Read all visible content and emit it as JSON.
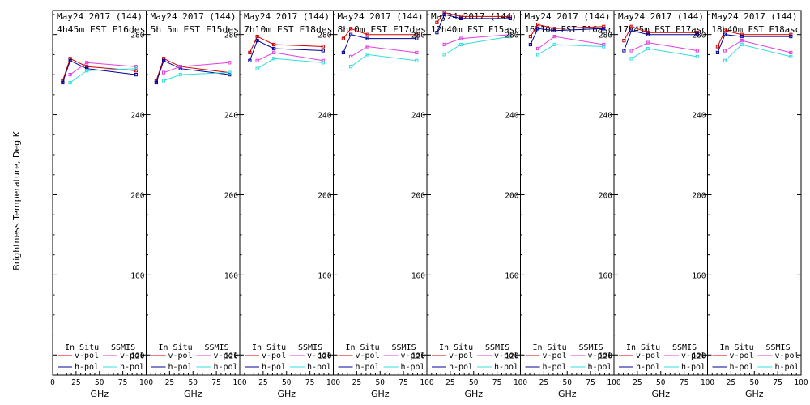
{
  "figure": {
    "ylabel": "Brightness Temperature, Deg K",
    "xlabel": "GHz",
    "legend": {
      "insitu_header": "In Situ",
      "ssmis_header": "SSMIS",
      "vpol_label": "v-pol",
      "hpol_label": "h-pol"
    },
    "colors": {
      "insitu_v": "#cc0000",
      "insitu_h": "#000099",
      "ssmis_v": "#e040e0",
      "ssmis_h": "#33dddd"
    }
  },
  "chart_data": [
    {
      "type": "line",
      "title_line1": "May24 2017 (144)",
      "title_line2": "4h45m  EST  F16des",
      "x": [
        10.7,
        18.7,
        36.5,
        89
      ],
      "xlim": [
        0,
        100
      ],
      "ylim": [
        110,
        292
      ],
      "xticks": [
        "0",
        "25",
        "50",
        "75",
        "100"
      ],
      "yticks": [],
      "series": [
        {
          "name": "In Situ v-pol",
          "values": [
            257,
            268,
            264,
            262
          ]
        },
        {
          "name": "In Situ h-pol",
          "values": [
            256,
            267,
            263,
            260
          ]
        },
        {
          "name": "SSMIS v-pol",
          "values": [
            null,
            260,
            266,
            264
          ]
        },
        {
          "name": "SSMIS h-pol",
          "values": [
            null,
            256,
            262,
            263
          ]
        }
      ]
    },
    {
      "type": "line",
      "title_line1": "May24 2017 (144)",
      "title_line2": "5h 5m  EST  F15des",
      "x": [
        10.7,
        18.7,
        36.5,
        89
      ],
      "xlim": [
        0,
        100
      ],
      "ylim": [
        110,
        292
      ],
      "xticks": [
        "0",
        "25",
        "50",
        "75",
        "100"
      ],
      "yticks": [
        "280",
        "240",
        "200",
        "160",
        "120"
      ],
      "series": [
        {
          "name": "In Situ v-pol",
          "values": [
            257,
            268,
            264,
            261
          ]
        },
        {
          "name": "In Situ h-pol",
          "values": [
            256,
            267,
            263,
            260
          ]
        },
        {
          "name": "SSMIS v-pol",
          "values": [
            null,
            261,
            264,
            266
          ]
        },
        {
          "name": "SSMIS h-pol",
          "values": [
            null,
            257,
            260,
            261
          ]
        }
      ]
    },
    {
      "type": "line",
      "title_line1": "May24 2017 (144)",
      "title_line2": "7h10m  EST  F18des",
      "x": [
        10.7,
        18.7,
        36.5,
        89
      ],
      "xlim": [
        0,
        100
      ],
      "ylim": [
        110,
        292
      ],
      "xticks": [
        "0",
        "25",
        "50",
        "75",
        "100"
      ],
      "yticks": [
        "280",
        "240",
        "200",
        "160",
        "120"
      ],
      "series": [
        {
          "name": "In Situ v-pol",
          "values": [
            271,
            279,
            275,
            274
          ]
        },
        {
          "name": "In Situ h-pol",
          "values": [
            267,
            277,
            273,
            272
          ]
        },
        {
          "name": "SSMIS v-pol",
          "values": [
            null,
            267,
            271,
            267
          ]
        },
        {
          "name": "SSMIS h-pol",
          "values": [
            null,
            263,
            268,
            266
          ]
        }
      ]
    },
    {
      "type": "line",
      "title_line1": "May24 2017 (144)",
      "title_line2": "8h 0m  EST  F17des",
      "x": [
        10.7,
        18.7,
        36.5,
        89
      ],
      "xlim": [
        0,
        100
      ],
      "ylim": [
        110,
        292
      ],
      "xticks": [
        "0",
        "25",
        "50",
        "75",
        "100"
      ],
      "yticks": [
        "280",
        "240",
        "200",
        "160",
        "120"
      ],
      "series": [
        {
          "name": "In Situ v-pol",
          "values": [
            278,
            283,
            280,
            280
          ]
        },
        {
          "name": "In Situ h-pol",
          "values": [
            271,
            280,
            278,
            278
          ]
        },
        {
          "name": "SSMIS v-pol",
          "values": [
            null,
            269,
            274,
            271
          ]
        },
        {
          "name": "SSMIS h-pol",
          "values": [
            null,
            264,
            270,
            267
          ]
        }
      ]
    },
    {
      "type": "line",
      "title_line1": "May24 2017 (144)",
      "title_line2": "12h40m  EST  F15asc",
      "x": [
        10.7,
        18.7,
        36.5,
        89
      ],
      "xlim": [
        0,
        100
      ],
      "ylim": [
        110,
        292
      ],
      "xticks": [
        "0",
        "25",
        "50",
        "75",
        "100"
      ],
      "yticks": [
        "280",
        "240",
        "200",
        "160",
        "120"
      ],
      "series": [
        {
          "name": "In Situ v-pol",
          "values": [
            286,
            291,
            289,
            289
          ]
        },
        {
          "name": "In Situ h-pol",
          "values": [
            281,
            290,
            288,
            288
          ]
        },
        {
          "name": "SSMIS v-pol",
          "values": [
            null,
            275,
            278,
            280
          ]
        },
        {
          "name": "SSMIS h-pol",
          "values": [
            null,
            270,
            275,
            279
          ]
        }
      ]
    },
    {
      "type": "line",
      "title_line1": "May24 2017 (144)",
      "title_line2": "16h10m  EST  F16asc",
      "x": [
        10.7,
        18.7,
        36.5,
        89
      ],
      "xlim": [
        0,
        100
      ],
      "ylim": [
        110,
        292
      ],
      "xticks": [
        "0",
        "25",
        "50",
        "75",
        "100"
      ],
      "yticks": [
        "280",
        "240",
        "200",
        "160",
        "120"
      ],
      "series": [
        {
          "name": "In Situ v-pol",
          "values": [
            279,
            285,
            283,
            284
          ]
        },
        {
          "name": "In Situ h-pol",
          "values": [
            275,
            283,
            282,
            283
          ]
        },
        {
          "name": "SSMIS v-pol",
          "values": [
            null,
            273,
            279,
            275
          ]
        },
        {
          "name": "SSMIS h-pol",
          "values": [
            null,
            270,
            275,
            274
          ]
        }
      ]
    },
    {
      "type": "line",
      "title_line1": "May24 2017 (144)",
      "title_line2": "17h45m  EST  F17asc",
      "x": [
        10.7,
        18.7,
        36.5,
        89
      ],
      "xlim": [
        0,
        100
      ],
      "ylim": [
        110,
        292
      ],
      "xticks": [
        "0",
        "25",
        "50",
        "75",
        "100"
      ],
      "yticks": [
        "280",
        "240",
        "200",
        "160",
        "120"
      ],
      "series": [
        {
          "name": "In Situ v-pol",
          "values": [
            277,
            284,
            281,
            281
          ]
        },
        {
          "name": "In Situ h-pol",
          "values": [
            272,
            282,
            280,
            280
          ]
        },
        {
          "name": "SSMIS v-pol",
          "values": [
            null,
            272,
            276,
            272
          ]
        },
        {
          "name": "SSMIS h-pol",
          "values": [
            null,
            268,
            273,
            269
          ]
        }
      ]
    },
    {
      "type": "line",
      "title_line1": "May24 2017 (144)",
      "title_line2": "18h40m  EST  F18asc",
      "x": [
        10.7,
        18.7,
        36.5,
        89
      ],
      "xlim": [
        0,
        100
      ],
      "ylim": [
        110,
        292
      ],
      "xticks": [
        "0",
        "25",
        "50",
        "75",
        "100"
      ],
      "yticks": [
        "280",
        "240",
        "200",
        "160",
        "120"
      ],
      "series": [
        {
          "name": "In Situ v-pol",
          "values": [
            274,
            282,
            280,
            280
          ]
        },
        {
          "name": "In Situ h-pol",
          "values": [
            271,
            280,
            279,
            279
          ]
        },
        {
          "name": "SSMIS v-pol",
          "values": [
            null,
            272,
            277,
            271
          ]
        },
        {
          "name": "SSMIS h-pol",
          "values": [
            null,
            267,
            275,
            269
          ]
        }
      ]
    }
  ]
}
